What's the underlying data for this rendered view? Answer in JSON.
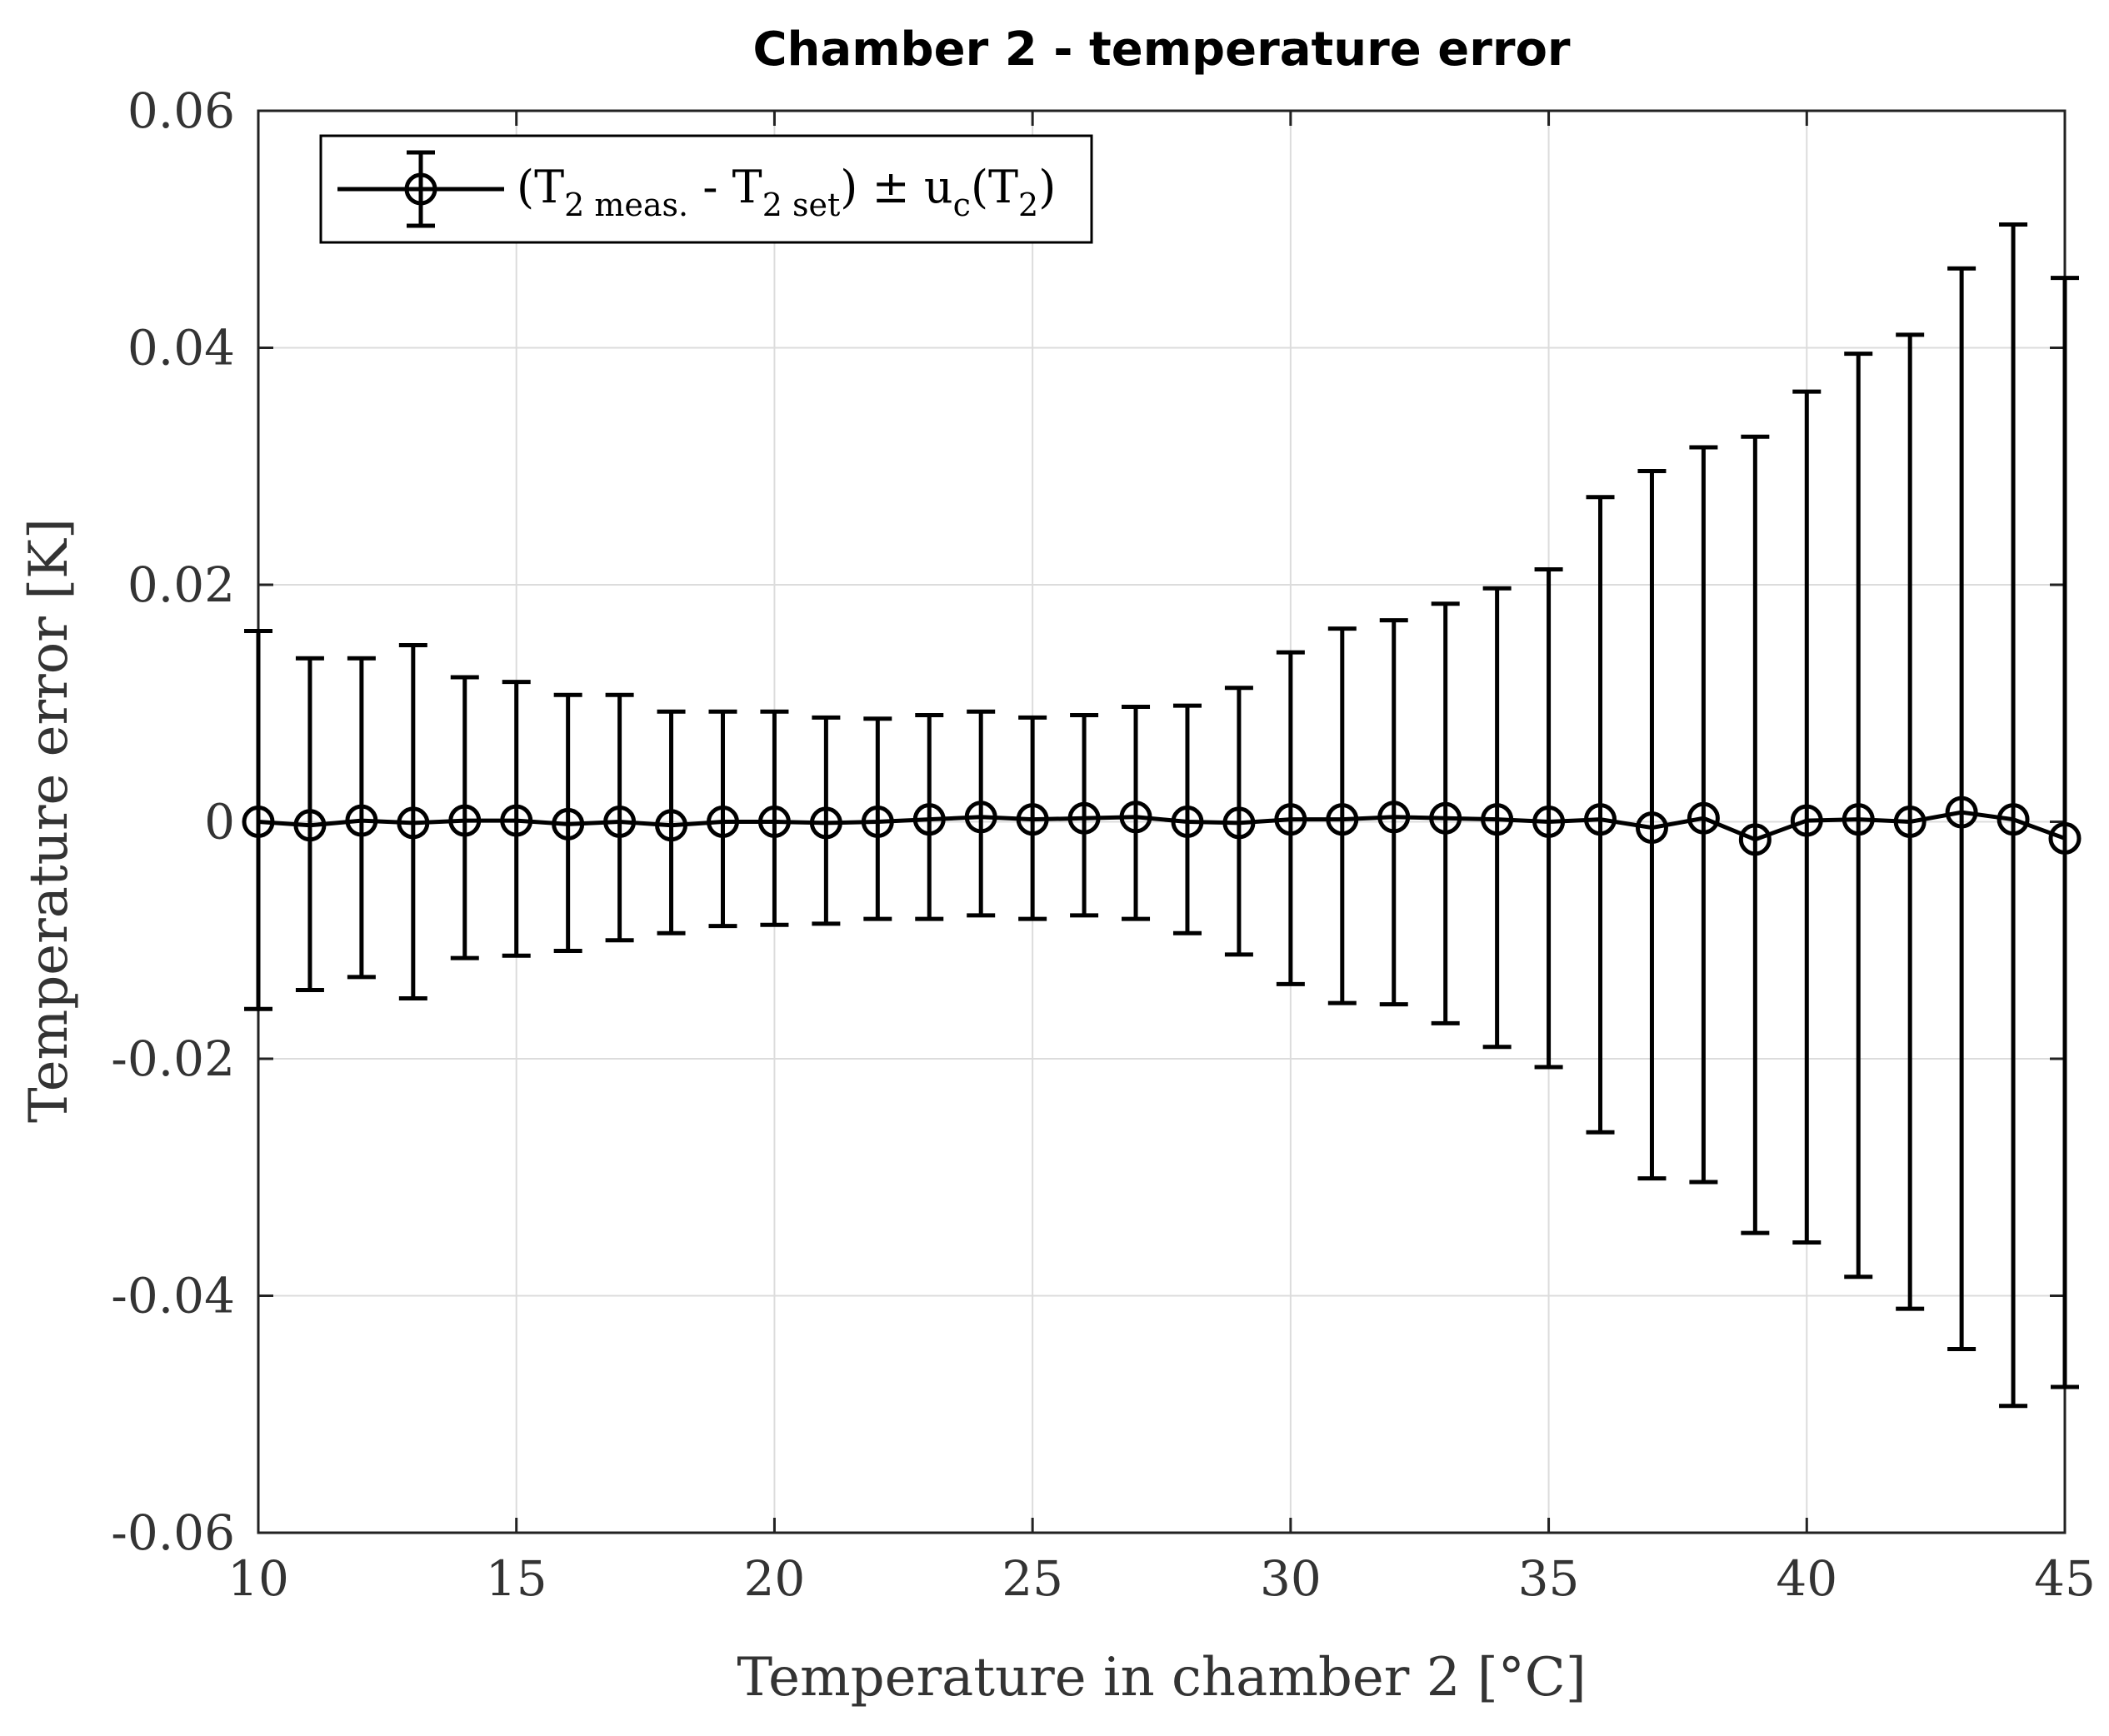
{
  "chart_data": {
    "type": "line",
    "title": "Chamber 2 - temperature error",
    "xlabel": "Temperature in chamber 2 [°C]",
    "ylabel": "Temperature error [K]",
    "xlim": [
      10,
      45
    ],
    "ylim": [
      -0.06,
      0.06
    ],
    "x_ticks": [
      10,
      15,
      20,
      25,
      30,
      35,
      40,
      45
    ],
    "x_tick_labels": [
      "10",
      "15",
      "20",
      "25",
      "30",
      "35",
      "40",
      "45"
    ],
    "y_ticks": [
      0.06,
      0.04,
      0.02,
      0,
      -0.02,
      -0.04,
      -0.06
    ],
    "y_tick_labels": [
      "0.06",
      "0.04",
      "0.02",
      "0",
      "-0.02",
      "-0.04",
      "-0.06"
    ],
    "grid": true,
    "legend_position": "top-left",
    "legend": {
      "open": "(T",
      "sub1": "2 meas.",
      "mid": " - T",
      "sub2": "2 set",
      "pm": ") ± u",
      "sub3": "c",
      "open2": "(T",
      "sub4": "2",
      "close": ")"
    },
    "series": [
      {
        "x": [
          10,
          11,
          12,
          13,
          14,
          15,
          16,
          17,
          18,
          19,
          20,
          21,
          22,
          23,
          24,
          25,
          26,
          27,
          28,
          29,
          30,
          31,
          32,
          33,
          34,
          35,
          36,
          37,
          38,
          39,
          40,
          41,
          42,
          43,
          44,
          45
        ],
        "y": [
          0.0,
          -0.0003,
          0.0001,
          -0.0001,
          0.0001,
          0.0001,
          -0.0002,
          0.0,
          -0.0003,
          0.0,
          0.0,
          -0.0001,
          0.0,
          0.0002,
          0.0004,
          0.0002,
          0.0003,
          0.0004,
          0.0,
          -0.0001,
          0.0002,
          0.0002,
          0.0004,
          0.0003,
          0.0002,
          0.0,
          0.0002,
          -0.0005,
          0.0003,
          -0.0015,
          0.0001,
          0.0002,
          0.0,
          0.0008,
          0.0002,
          -0.0014
        ],
        "err_upper": [
          0.0161,
          0.0138,
          0.0138,
          0.0149,
          0.0122,
          0.0118,
          0.0107,
          0.0107,
          0.0093,
          0.0093,
          0.0093,
          0.0088,
          0.0087,
          0.009,
          0.0093,
          0.0088,
          0.009,
          0.0097,
          0.0098,
          0.0113,
          0.0143,
          0.0163,
          0.017,
          0.0184,
          0.0197,
          0.0213,
          0.0274,
          0.0296,
          0.0316,
          0.0325,
          0.0363,
          0.0395,
          0.0411,
          0.0467,
          0.0504,
          0.0459
        ],
        "err_lower": [
          -0.0158,
          -0.0142,
          -0.0131,
          -0.0149,
          -0.0115,
          -0.0113,
          -0.0109,
          -0.01,
          -0.0094,
          -0.0088,
          -0.0087,
          -0.0086,
          -0.0082,
          -0.0082,
          -0.0079,
          -0.0082,
          -0.0079,
          -0.0082,
          -0.0094,
          -0.0112,
          -0.0137,
          -0.0153,
          -0.0154,
          -0.017,
          -0.019,
          -0.0207,
          -0.0262,
          -0.0301,
          -0.0304,
          -0.0347,
          -0.0355,
          -0.0384,
          -0.0411,
          -0.0445,
          -0.0493,
          -0.0477
        ]
      }
    ]
  }
}
